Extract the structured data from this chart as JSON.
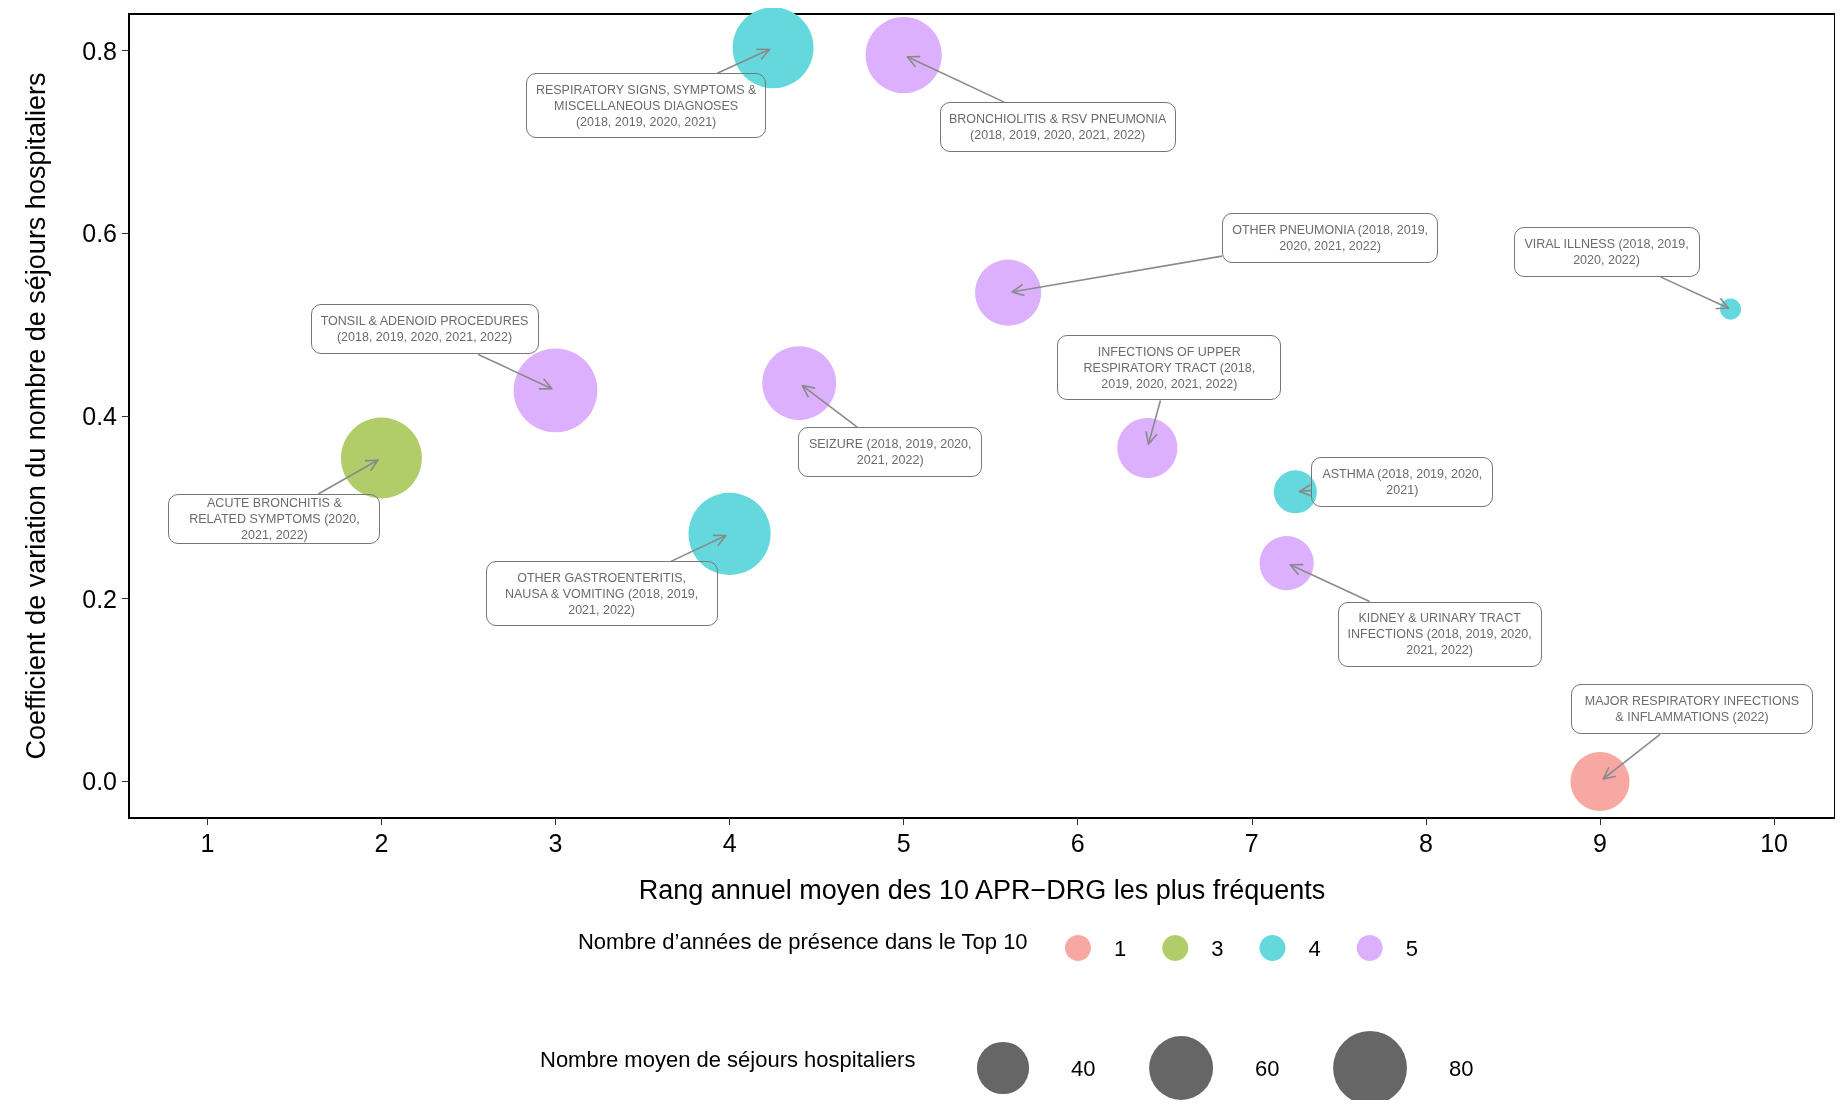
{
  "chart_data": {
    "type": "bubble",
    "xlabel": "Rang annuel moyen des 10 APR−DRG les plus fréquents",
    "ylabel": "Coefficient de variation du nombre de séjours hospitaliers",
    "legend_title": "Nombre d’années de présence dans le Top 10",
    "xlim": [
      0.55,
      10.35
    ],
    "ylim": [
      -0.04,
      0.84
    ],
    "xticks": [
      1,
      2,
      3,
      4,
      5,
      6,
      7,
      8,
      9,
      10
    ],
    "yticks": [
      {
        "value": 0,
        "label": "0.0"
      },
      {
        "value": 0.2,
        "label": "0.2"
      },
      {
        "value": 0.4,
        "label": "0.4"
      },
      {
        "value": 0.6,
        "label": "0.6"
      },
      {
        "value": 0.8,
        "label": "0.8"
      }
    ],
    "grid": false,
    "legend": "bottom",
    "marker": "circle",
    "size_legend": [
      40,
      60,
      80
    ],
    "series": [
      {
        "name": "1",
        "color": "#f8a8a2",
        "x": [
          9
        ],
        "values": [
          0
        ],
        "sizes": [
          51
        ]
      },
      {
        "name": "3",
        "color": "#b1cd6a",
        "x": [
          2
        ],
        "values": [
          0.354
        ],
        "sizes": [
          96
        ]
      },
      {
        "name": "4",
        "color": "#64d8dc",
        "x": [
          4.25,
          9.75,
          7.25,
          4
        ],
        "values": [
          0.803,
          0.517,
          0.317,
          0.271
        ],
        "sizes": [
          96,
          6.5,
          27,
          99
        ]
      },
      {
        "name": "5",
        "color": "#dcb0fc",
        "x": [
          5,
          5.6,
          3,
          4.4,
          6.4,
          7.2
        ],
        "values": [
          0.795,
          0.535,
          0.428,
          0.436,
          0.365,
          0.239
        ],
        "sizes": [
          85,
          64,
          103,
          80,
          53,
          43
        ]
      }
    ],
    "annotations": [
      {
        "text": "RESPIRATORY SIGNS, SYMPTOMS & MISCELLANEOUS DIAGNOSES (2018, 2019, 2020, 2021)",
        "x": 4.25,
        "y": 0.803
      },
      {
        "text": "BRONCHIOLITIS & RSV PNEUMONIA (2018, 2019, 2020, 2021, 2022)",
        "x": 5,
        "y": 0.795
      },
      {
        "text": "OTHER PNEUMONIA (2018, 2019, 2020, 2021, 2022)",
        "x": 5.6,
        "y": 0.535
      },
      {
        "text": "VIRAL ILLNESS (2018, 2019, 2020, 2022)",
        "x": 9.75,
        "y": 0.517
      },
      {
        "text": "TONSIL & ADENOID PROCEDURES (2018, 2019, 2020, 2021, 2022)",
        "x": 3,
        "y": 0.428
      },
      {
        "text": "SEIZURE (2018, 2019, 2020, 2021, 2022)",
        "x": 4.4,
        "y": 0.436
      },
      {
        "text": "INFECTIONS OF UPPER RESPIRATORY TRACT (2018, 2019, 2020, 2021, 2022)",
        "x": 6.4,
        "y": 0.365
      },
      {
        "text": "ACUTE BRONCHITIS & RELATED SYMPTOMS (2020, 2021, 2022)",
        "x": 2,
        "y": 0.354
      },
      {
        "text": "ASTHMA (2018, 2019, 2020, 2021)",
        "x": 7.25,
        "y": 0.317
      },
      {
        "text": "OTHER GASTROENTERITIS, NAUSA & VOMITING (2018, 2019, 2021, 2022)",
        "x": 4,
        "y": 0.271
      },
      {
        "text": "KIDNEY & URINARY TRACT INFECTIONS (2018, 2019, 2020, 2021, 2022)",
        "x": 7.2,
        "y": 0.239
      },
      {
        "text": "MAJOR RESPIRATORY INFECTIONS & INFLAMMATIONS (2022)",
        "x": 9,
        "y": 0
      },
      "Nombre moyen de séjours hospitaliers"
    ]
  }
}
